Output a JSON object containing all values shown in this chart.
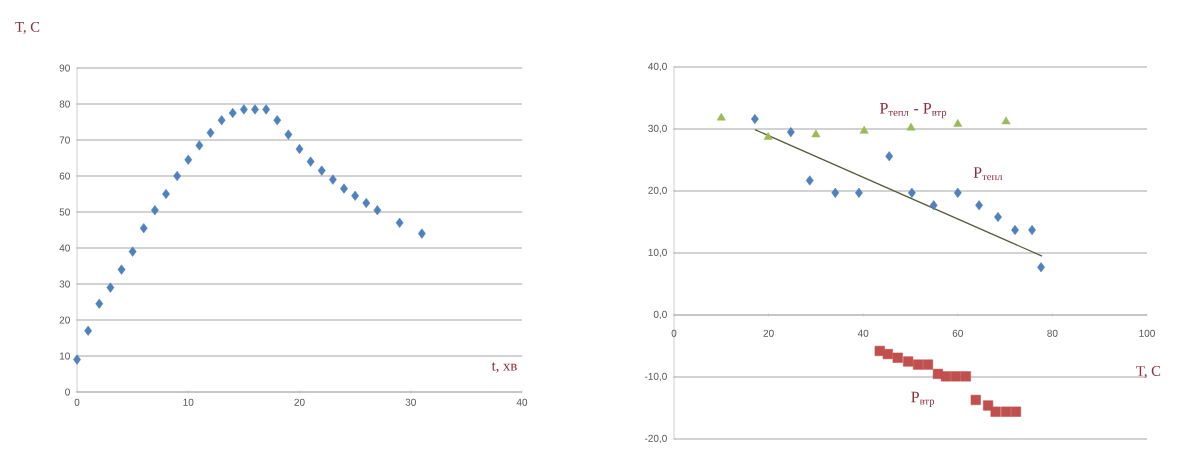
{
  "chart_data": [
    {
      "type": "scatter",
      "xlabel": "t, хв",
      "ylabel": "T, C",
      "xlim": [
        0,
        40
      ],
      "ylim": [
        0,
        90
      ],
      "xticks": [
        0,
        10,
        20,
        30,
        40
      ],
      "yticks": [
        0,
        10,
        20,
        30,
        40,
        50,
        60,
        70,
        80,
        90
      ],
      "grid": "y",
      "marker": "diamond",
      "series": [
        {
          "color": "#4f81bd",
          "x": [
            0,
            1,
            2,
            3,
            4,
            5,
            6,
            7,
            8,
            9,
            10,
            11,
            12,
            13,
            14,
            15,
            16,
            17,
            18,
            19,
            20,
            21,
            22,
            23,
            24,
            25,
            26,
            27,
            29,
            31
          ],
          "values": [
            9,
            17,
            24.5,
            29,
            34,
            39,
            45.5,
            50.5,
            55,
            60,
            64.5,
            68.5,
            72,
            75.5,
            77.5,
            78.5,
            78.5,
            78.5,
            75.5,
            71.5,
            67.5,
            64,
            61.5,
            59,
            56.5,
            54.5,
            52.5,
            50.5,
            47,
            44
          ]
        }
      ]
    },
    {
      "type": "scatter",
      "xlabel": "T, C",
      "xlim": [
        0,
        100
      ],
      "ylim": [
        -20,
        40
      ],
      "xticks": [
        0,
        20,
        40,
        60,
        80,
        100
      ],
      "yticks": [
        {
          "value": -20,
          "label": "-20,0"
        },
        {
          "value": -10,
          "label": "-10,0"
        },
        {
          "value": 0,
          "label": "0,0"
        },
        {
          "value": 10,
          "label": "10,0"
        },
        {
          "value": 20,
          "label": "20,0"
        },
        {
          "value": 30,
          "label": "30,0"
        },
        {
          "value": 40,
          "label": "40,0"
        }
      ],
      "grid": "y",
      "series": [
        {
          "name": "P$_{тепл}$",
          "color": "#4f81bd",
          "marker": "diamond",
          "x": [
            17.1,
            24.7,
            28.7,
            34.1,
            39.1,
            45.5,
            50.3,
            54.9,
            60.0,
            64.5,
            68.5,
            72.1,
            75.7,
            77.6
          ],
          "values": [
            31.6,
            29.5,
            21.7,
            19.7,
            19.7,
            25.6,
            19.7,
            17.7,
            19.7,
            17.7,
            15.8,
            13.7,
            13.7,
            7.7
          ]
        },
        {
          "name": "P$_{втр}$",
          "color": "#c0504d",
          "marker": "square",
          "x": [
            43.5,
            45.2,
            47.3,
            49.5,
            51.6,
            53.7,
            55.8,
            57.5,
            59.6,
            61.7,
            63.8,
            66.4,
            68.0,
            70.2,
            72.3
          ],
          "values": [
            -5.8,
            -6.3,
            -6.9,
            -7.5,
            -8.0,
            -8.0,
            -9.5,
            -9.9,
            -9.9,
            -9.9,
            -13.7,
            -14.6,
            -15.6,
            -15.6,
            -15.6
          ]
        },
        {
          "name": "P$_{тепл}$ - P$_{втр}$",
          "color": "#9bbb59",
          "marker": "triangle",
          "x": [
            10.0,
            19.9,
            30.0,
            40.2,
            50.1,
            60.0,
            70.2
          ],
          "values": [
            31.8,
            28.7,
            29.1,
            29.7,
            30.2,
            30.8,
            31.2
          ]
        },
        {
          "type": "line",
          "color": "#5a5a3c",
          "marker": "none",
          "x": [
            17.1,
            77.8
          ],
          "values": [
            29.9,
            9.5
          ]
        }
      ]
    }
  ]
}
